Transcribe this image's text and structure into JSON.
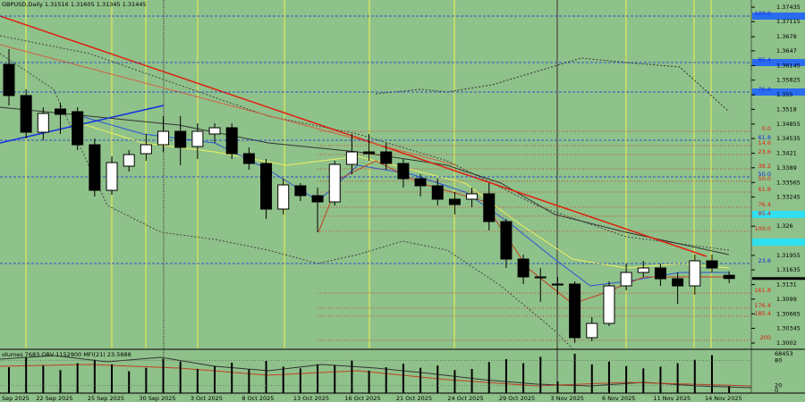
{
  "chart_data": {
    "type": "candlestick",
    "title": "GBPUSD,Daily  1.31516 1.31605 1.31345 1.31445",
    "categories": [
      "Sep 2025",
      null,
      "22 Sep 2025",
      null,
      null,
      "25 Sep 2025",
      null,
      null,
      "30 Sep 2025",
      null,
      null,
      "3 Oct 2025",
      null,
      null,
      "8 Oct 2025",
      null,
      null,
      "13 Oct 2025",
      null,
      null,
      "16 Oct 2025",
      null,
      null,
      "21 Oct 2025",
      null,
      null,
      "24 Oct 2025",
      null,
      null,
      "29 Oct 2025",
      null,
      null,
      "3 Nov 2025",
      null,
      null,
      "6 Nov 2025",
      null,
      null,
      "11 Nov 2025",
      null,
      null,
      "14 Nov 2025",
      null
    ],
    "open": [
      1.36173,
      1.35483,
      1.34674,
      1.35187,
      1.35128,
      1.34398,
      1.33392,
      1.33925,
      1.34201,
      1.34398,
      1.34694,
      1.34359,
      1.34635,
      1.34773,
      1.34201,
      1.33984,
      1.32978,
      1.33491,
      1.33274,
      1.33136,
      1.33964,
      1.3424,
      1.3424,
      1.33984,
      1.33649,
      1.33491,
      1.33195,
      1.33195,
      1.33314,
      1.32702,
      1.31874,
      1.3148,
      1.31322,
      1.31322,
      1.30139,
      1.30454,
      1.31282,
      1.31578,
      1.31677,
      1.3144,
      1.31282,
      1.31835,
      1.31516
    ],
    "high": [
      1.36508,
      1.35621,
      1.35226,
      1.35325,
      1.35226,
      1.34536,
      1.34142,
      1.3428,
      1.34635,
      1.35029,
      1.35029,
      1.34871,
      1.34871,
      1.34871,
      1.34339,
      1.34083,
      1.33649,
      1.3355,
      1.33452,
      1.34043,
      1.34635,
      1.34635,
      1.34438,
      1.34083,
      1.33747,
      1.33649,
      1.33353,
      1.33452,
      1.3355,
      1.32761,
      1.31973,
      1.31677,
      1.3148,
      1.31381,
      1.30592,
      1.31381,
      1.31775,
      1.31835,
      1.31775,
      1.31578,
      1.31973,
      1.31973,
      1.31605
    ],
    "low": [
      1.35266,
      1.34536,
      1.34497,
      1.34635,
      1.3428,
      1.33254,
      1.33294,
      1.33807,
      1.34043,
      1.3424,
      1.33945,
      1.34083,
      1.34438,
      1.34083,
      1.33846,
      1.32761,
      1.3286,
      1.33156,
      1.32466,
      1.33057,
      1.33747,
      1.34043,
      1.33846,
      1.33452,
      1.33254,
      1.33057,
      1.3286,
      1.33018,
      1.32505,
      1.31677,
      1.31322,
      1.30927,
      1.31085,
      1.3002,
      1.3006,
      1.30395,
      1.31184,
      1.3148,
      1.31282,
      1.30888,
      1.31085,
      1.31578,
      1.31345
    ],
    "close": [
      1.35483,
      1.34674,
      1.35088,
      1.35069,
      1.34398,
      1.33392,
      1.34004,
      1.34181,
      1.34398,
      1.34694,
      1.34339,
      1.34694,
      1.34773,
      1.34201,
      1.33984,
      1.32978,
      1.33511,
      1.33274,
      1.33136,
      1.33964,
      1.3424,
      1.34201,
      1.33984,
      1.33649,
      1.33491,
      1.33195,
      1.33077,
      1.33314,
      1.32702,
      1.31874,
      1.3148,
      1.3146,
      1.31302,
      1.30139,
      1.30454,
      1.31282,
      1.31578,
      1.31677,
      1.3144,
      1.31282,
      1.31835,
      1.31677,
      1.31445
    ],
    "ylim": [
      1.29902,
      1.37593
    ],
    "yticks": [
      1.37435,
      1.37115,
      1.3678,
      1.3647,
      1.36145,
      1.35825,
      1.355,
      1.3518,
      1.34855,
      1.34535,
      1.3421,
      1.3389,
      1.33565,
      1.33245,
      1.326,
      1.31955,
      1.31635,
      1.3131,
      1.3099,
      1.30665,
      1.30345,
      1.3002
    ],
    "fib_levels": [
      "100.0",
      "85.4",
      "76.4",
      "0.0",
      "61.8",
      "14.6",
      "23.6",
      "38.2",
      "50.0",
      "50.0",
      "61.8",
      "76.4",
      "85.4",
      "100.0",
      "23.6",
      "161.8",
      "176.4",
      "185.4",
      "200"
    ],
    "indicator_label": "olumes 7683  OBV 1152900  MFI(21) 23.5888",
    "volume": [
      45000,
      62000,
      48000,
      40000,
      52000,
      58000,
      50000,
      38000,
      44000,
      60000,
      55000,
      42000,
      47000,
      53000,
      41000,
      56000,
      46000,
      43000,
      50000,
      49000,
      57000,
      39000,
      45000,
      51000,
      44000,
      48000,
      40000,
      42000,
      54000,
      59000,
      52000,
      63000,
      20000,
      68453,
      50000,
      55000,
      47000,
      43000,
      46000,
      52000,
      58000,
      66000,
      12000
    ],
    "volume_ylim": [
      0,
      68453
    ],
    "volume_ticks": [
      68453
    ],
    "mfi_ylim": [
      0,
      100
    ],
    "mfi_ticks": [
      80,
      20,
      0
    ]
  }
}
